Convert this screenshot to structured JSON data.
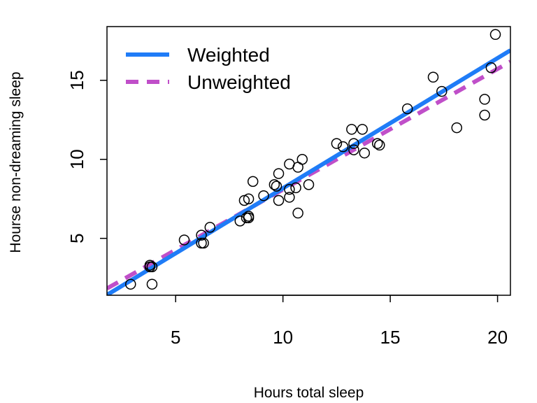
{
  "chart_data": {
    "type": "scatter",
    "xlabel": "Hours total sleep",
    "ylabel": "Hourse non-dreaming sleep",
    "xlim": [
      1.8,
      20.6
    ],
    "ylim": [
      1.4,
      18.4
    ],
    "x_ticks": [
      "5",
      "10",
      "15",
      "20"
    ],
    "y_ticks": [
      "5",
      "10",
      "15"
    ],
    "x_tick_values": [
      5,
      10,
      15,
      20
    ],
    "y_tick_values": [
      5,
      10,
      15
    ],
    "grid": false,
    "legend_position": "top-left",
    "points": [
      {
        "x": 2.9,
        "y": 2.1
      },
      {
        "x": 3.8,
        "y": 3.3
      },
      {
        "x": 3.8,
        "y": 3.2
      },
      {
        "x": 3.9,
        "y": 2.1
      },
      {
        "x": 3.9,
        "y": 3.2
      },
      {
        "x": 5.4,
        "y": 4.9
      },
      {
        "x": 6.2,
        "y": 4.7
      },
      {
        "x": 6.2,
        "y": 5.2
      },
      {
        "x": 6.3,
        "y": 4.7
      },
      {
        "x": 6.6,
        "y": 5.7
      },
      {
        "x": 8.0,
        "y": 6.1
      },
      {
        "x": 8.2,
        "y": 7.4
      },
      {
        "x": 8.3,
        "y": 6.3
      },
      {
        "x": 8.4,
        "y": 6.4
      },
      {
        "x": 8.4,
        "y": 6.3
      },
      {
        "x": 8.4,
        "y": 7.5
      },
      {
        "x": 8.6,
        "y": 8.6
      },
      {
        "x": 9.1,
        "y": 7.7
      },
      {
        "x": 9.6,
        "y": 8.4
      },
      {
        "x": 9.7,
        "y": 8.3
      },
      {
        "x": 9.8,
        "y": 9.1
      },
      {
        "x": 9.8,
        "y": 7.4
      },
      {
        "x": 10.3,
        "y": 8.1
      },
      {
        "x": 10.3,
        "y": 7.6
      },
      {
        "x": 10.3,
        "y": 9.7
      },
      {
        "x": 10.6,
        "y": 8.2
      },
      {
        "x": 10.7,
        "y": 9.5
      },
      {
        "x": 10.7,
        "y": 6.6
      },
      {
        "x": 10.9,
        "y": 10.0
      },
      {
        "x": 11.2,
        "y": 8.4
      },
      {
        "x": 12.5,
        "y": 11.0
      },
      {
        "x": 12.8,
        "y": 10.8
      },
      {
        "x": 13.2,
        "y": 11.9
      },
      {
        "x": 13.3,
        "y": 10.6
      },
      {
        "x": 13.3,
        "y": 11.0
      },
      {
        "x": 13.7,
        "y": 11.9
      },
      {
        "x": 13.8,
        "y": 10.4
      },
      {
        "x": 14.4,
        "y": 11.0
      },
      {
        "x": 14.5,
        "y": 10.9
      },
      {
        "x": 15.8,
        "y": 13.2
      },
      {
        "x": 17.0,
        "y": 15.2
      },
      {
        "x": 17.4,
        "y": 14.3
      },
      {
        "x": 18.1,
        "y": 12.0
      },
      {
        "x": 19.4,
        "y": 13.8
      },
      {
        "x": 19.4,
        "y": 12.8
      },
      {
        "x": 19.7,
        "y": 15.8
      },
      {
        "x": 19.9,
        "y": 17.9
      }
    ],
    "series": [
      {
        "name": "Weighted",
        "type": "line",
        "style": "solid",
        "color": "#1f7cf7",
        "x": [
          1.8,
          20.6
        ],
        "y": [
          1.42,
          16.9
        ]
      },
      {
        "name": "Unweighted",
        "type": "line",
        "style": "dashed",
        "color": "#c04fc9",
        "x": [
          1.8,
          20.6
        ],
        "y": [
          1.83,
          16.18
        ]
      }
    ]
  }
}
